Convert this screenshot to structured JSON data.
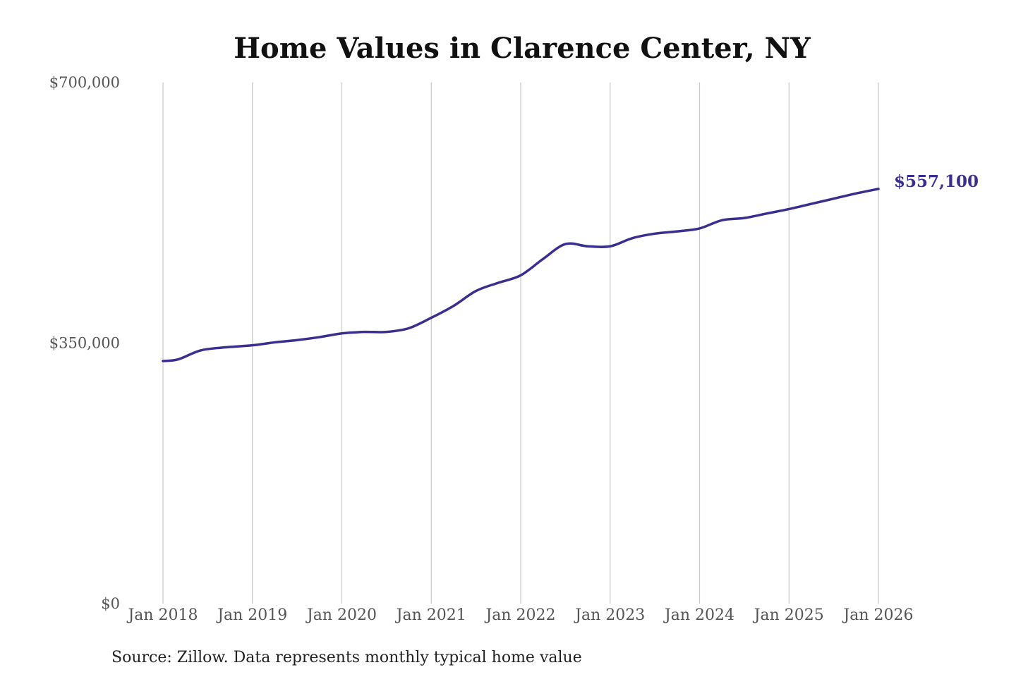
{
  "chart_data": {
    "type": "line",
    "title": "Home Values in Clarence Center, NY",
    "xlabel": "",
    "ylabel": "",
    "ylim": [
      0,
      700000
    ],
    "xlim": [
      "2018-01",
      "2026-01"
    ],
    "y_tick_labels": [
      "$700,000",
      "$350,000",
      "$0"
    ],
    "y_tick_values": [
      700000,
      350000,
      0
    ],
    "x_tick_labels": [
      "Jan 2018",
      "Jan 2019",
      "Jan 2020",
      "Jan 2021",
      "Jan 2022",
      "Jan 2023",
      "Jan 2024",
      "Jan 2025",
      "Jan 2026"
    ],
    "x_tick_values": [
      "2018-01",
      "2019-01",
      "2020-01",
      "2021-01",
      "2022-01",
      "2023-01",
      "2024-01",
      "2025-01",
      "2026-01"
    ],
    "grid": "vertical",
    "series": [
      {
        "color": "#3a2f8f",
        "points": [
          {
            "x": "2018-01",
            "y": 326000
          },
          {
            "x": "2018-03",
            "y": 328000
          },
          {
            "x": "2018-06",
            "y": 340000
          },
          {
            "x": "2018-09",
            "y": 344000
          },
          {
            "x": "2019-01",
            "y": 347000
          },
          {
            "x": "2019-04",
            "y": 351000
          },
          {
            "x": "2019-07",
            "y": 354000
          },
          {
            "x": "2019-10",
            "y": 358000
          },
          {
            "x": "2020-01",
            "y": 363000
          },
          {
            "x": "2020-04",
            "y": 365000
          },
          {
            "x": "2020-07",
            "y": 365000
          },
          {
            "x": "2020-10",
            "y": 370000
          },
          {
            "x": "2021-01",
            "y": 384000
          },
          {
            "x": "2021-04",
            "y": 400000
          },
          {
            "x": "2021-07",
            "y": 420000
          },
          {
            "x": "2021-10",
            "y": 431000
          },
          {
            "x": "2022-01",
            "y": 441000
          },
          {
            "x": "2022-04",
            "y": 463000
          },
          {
            "x": "2022-07",
            "y": 483000
          },
          {
            "x": "2022-10",
            "y": 480000
          },
          {
            "x": "2023-01",
            "y": 480000
          },
          {
            "x": "2023-04",
            "y": 491000
          },
          {
            "x": "2023-07",
            "y": 497000
          },
          {
            "x": "2023-10",
            "y": 500000
          },
          {
            "x": "2024-01",
            "y": 504000
          },
          {
            "x": "2024-04",
            "y": 515000
          },
          {
            "x": "2024-07",
            "y": 518000
          },
          {
            "x": "2024-10",
            "y": 524000
          },
          {
            "x": "2025-01",
            "y": 530000
          },
          {
            "x": "2025-04",
            "y": 537000
          },
          {
            "x": "2025-07",
            "y": 544000
          },
          {
            "x": "2025-10",
            "y": 551000
          },
          {
            "x": "2026-01",
            "y": 557100
          }
        ]
      }
    ],
    "end_label": "$557,100",
    "source": "Source: Zillow. Data represents monthly typical home value"
  }
}
